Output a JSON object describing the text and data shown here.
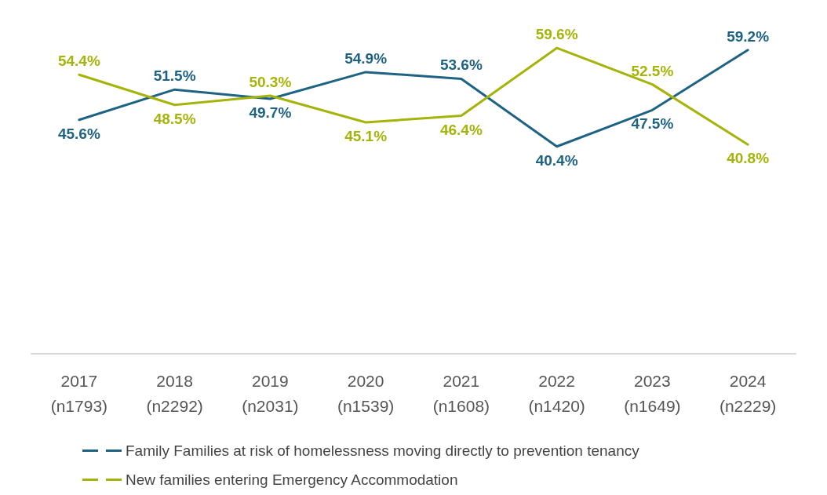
{
  "chart_data": {
    "type": "line",
    "categories": [
      "2017\n(n1793)",
      "2018\n(n2292)",
      "2019\n(n2031)",
      "2020\n(n1539)",
      "2021\n(n1608)",
      "2022\n(n1420)",
      "2023\n(n1649)",
      "2024\n(n2229)"
    ],
    "series": [
      {
        "name": "Family Families at risk of homelessness moving directly to prevention tenancy",
        "color": "#1f6384",
        "values": [
          45.6,
          51.5,
          49.7,
          54.9,
          53.6,
          40.4,
          47.5,
          59.2
        ],
        "value_labels": [
          "45.6%",
          "51.5%",
          "49.7%",
          "54.9%",
          "53.6%",
          "40.4%",
          "47.5%",
          "59.2%"
        ]
      },
      {
        "name": "New families entering Emergency Accommodation",
        "color": "#a5b40a",
        "values": [
          54.4,
          48.5,
          50.3,
          45.1,
          46.4,
          59.6,
          52.5,
          40.8
        ],
        "value_labels": [
          "54.4%",
          "48.5%",
          "50.3%",
          "45.1%",
          "46.4%",
          "59.6%",
          "52.5%",
          "40.8%"
        ]
      }
    ],
    "marker": "none",
    "line_style": "solid",
    "legend": "bottom",
    "grid": false
  }
}
